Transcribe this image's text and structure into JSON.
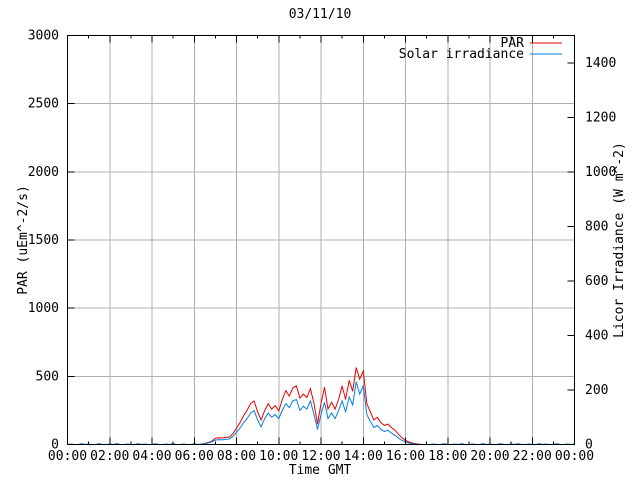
{
  "chart_data": {
    "type": "line",
    "title": "03/11/10",
    "xlabel": "Time GMT",
    "ylabel_left": "PAR (uEm^-2/s)",
    "ylabel_right": "Licor Irradiance (W m^-2)",
    "xlim_hours": [
      0,
      24
    ],
    "x_major_step_hours": 2,
    "x_minor_step_hours": 1,
    "ylim_left": [
      0,
      3000
    ],
    "y_left_major_step": 500,
    "ylim_right": [
      0,
      1500
    ],
    "y_right_major_step": 200,
    "x_tick_labels": [
      "00:00",
      "02:00",
      "04:00",
      "06:00",
      "08:00",
      "10:00",
      "12:00",
      "14:00",
      "16:00",
      "18:00",
      "20:00",
      "22:00",
      "00:00"
    ],
    "y_left_tick_labels": [
      "0",
      "500",
      "1000",
      "1500",
      "2000",
      "2500",
      "3000"
    ],
    "y_right_tick_labels": [
      "0",
      "200",
      "400",
      "600",
      "800",
      "1000",
      "1200",
      "1400"
    ],
    "grid": true,
    "grid_color": "#b0b0b0",
    "axis_color": "#000000",
    "background_color": "#ffffff",
    "legend": {
      "position": "top-right-inside",
      "entries": [
        {
          "label": "PAR",
          "color": "#e60000",
          "axis": "left"
        },
        {
          "label": "Solar irradiance",
          "color": "#0080e0",
          "axis": "right"
        }
      ]
    },
    "sample_step_minutes": 10,
    "series": [
      {
        "name": "PAR",
        "axis": "left",
        "color": "#e60000",
        "values": [
          0,
          0,
          0,
          0,
          0,
          0,
          0,
          0,
          0,
          0,
          0,
          0,
          0,
          0,
          0,
          0,
          0,
          0,
          0,
          0,
          0,
          0,
          0,
          0,
          0,
          0,
          0,
          0,
          0,
          0,
          0,
          0,
          0,
          0,
          0,
          0,
          0,
          0,
          0,
          8,
          15,
          25,
          45,
          50,
          48,
          52,
          55,
          80,
          120,
          160,
          210,
          250,
          300,
          320,
          240,
          180,
          250,
          300,
          260,
          285,
          245,
          330,
          395,
          355,
          415,
          430,
          340,
          370,
          345,
          410,
          300,
          150,
          300,
          420,
          260,
          310,
          260,
          330,
          430,
          330,
          470,
          390,
          565,
          480,
          540,
          300,
          240,
          180,
          200,
          160,
          140,
          150,
          125,
          105,
          75,
          50,
          30,
          18,
          10,
          5,
          2,
          0,
          0,
          0,
          0,
          0,
          0,
          0,
          0,
          0,
          0,
          0,
          0,
          0,
          0,
          0,
          0,
          0,
          0,
          0,
          0,
          0,
          0,
          0,
          0,
          0,
          0,
          0,
          0,
          0,
          0,
          0,
          0,
          0,
          0,
          0,
          0,
          0,
          0,
          0,
          0,
          0,
          0,
          0,
          0
        ]
      },
      {
        "name": "Solar irradiance",
        "axis": "right",
        "color": "#0080e0",
        "values": [
          0,
          2,
          0,
          0,
          3,
          0,
          2,
          0,
          0,
          3,
          0,
          0,
          2,
          0,
          3,
          0,
          0,
          2,
          0,
          0,
          3,
          0,
          2,
          0,
          0,
          3,
          0,
          0,
          2,
          0,
          3,
          0,
          0,
          2,
          0,
          0,
          3,
          0,
          2,
          3,
          6,
          10,
          16,
          18,
          17,
          19,
          20,
          30,
          45,
          60,
          80,
          95,
          115,
          125,
          90,
          65,
          95,
          115,
          100,
          110,
          95,
          125,
          150,
          135,
          160,
          165,
          125,
          140,
          130,
          160,
          110,
          55,
          110,
          155,
          95,
          115,
          95,
          125,
          160,
          120,
          175,
          145,
          230,
          185,
          215,
          110,
          85,
          62,
          70,
          55,
          48,
          52,
          42,
          34,
          24,
          15,
          9,
          5,
          3,
          1,
          0,
          0,
          0,
          0,
          2,
          0,
          0,
          3,
          0,
          0,
          2,
          0,
          3,
          0,
          0,
          2,
          0,
          0,
          3,
          0,
          2,
          0,
          0,
          3,
          0,
          0,
          2,
          0,
          3,
          0,
          0,
          2,
          0,
          0,
          3,
          0,
          2,
          0,
          0,
          3,
          0,
          0,
          2,
          0,
          2
        ]
      }
    ]
  }
}
